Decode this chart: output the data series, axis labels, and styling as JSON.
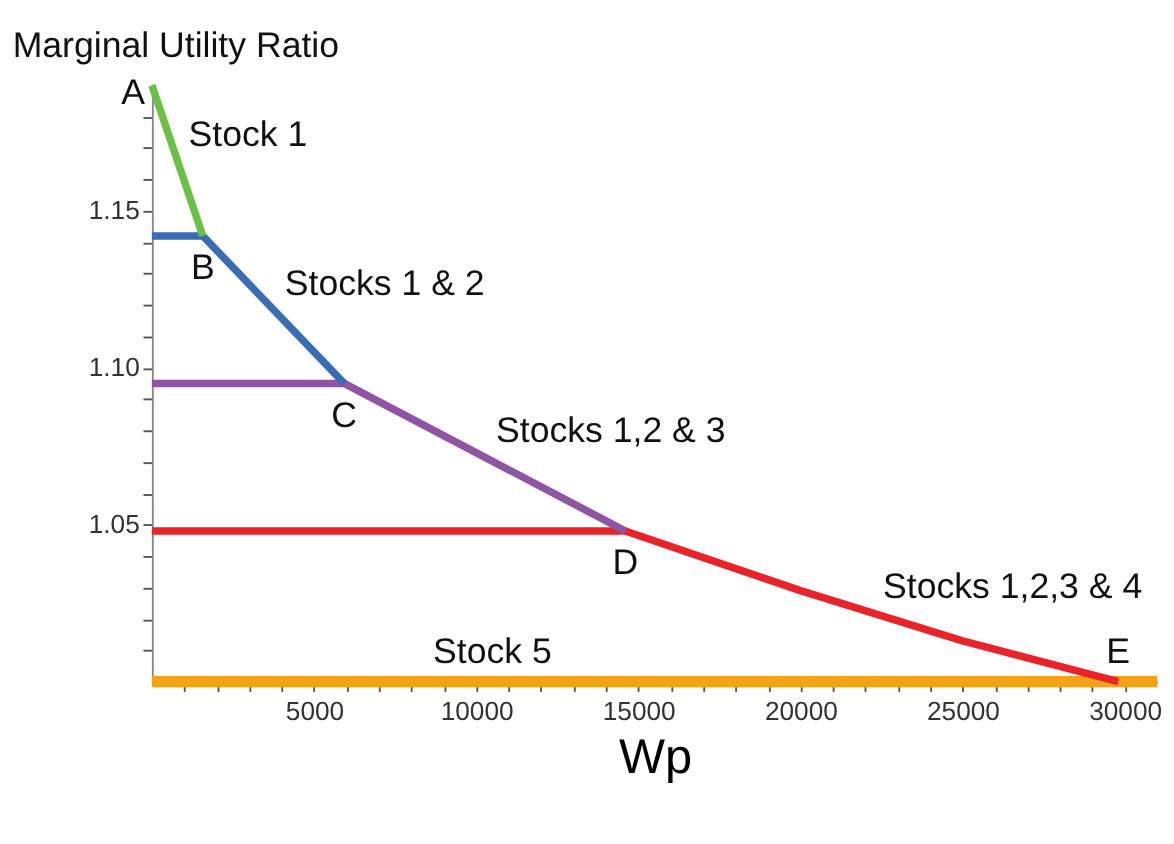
{
  "chart_data": {
    "type": "line",
    "xlabel": "Wp",
    "ylabel": "Marginal Utility Ratio",
    "xlim": [
      0,
      31000
    ],
    "ylim": [
      1.0,
      1.19
    ],
    "xticks": [
      {
        "value": 1000,
        "label": null
      },
      {
        "value": 2000,
        "label": null
      },
      {
        "value": 3000,
        "label": null
      },
      {
        "value": 4000,
        "label": null
      },
      5000,
      {
        "value": 6000,
        "label": null
      },
      {
        "value": 7000,
        "label": null
      },
      {
        "value": 8000,
        "label": null
      },
      {
        "value": 9000,
        "label": null
      },
      10000,
      {
        "value": 11000,
        "label": null
      },
      {
        "value": 12000,
        "label": null
      },
      {
        "value": 13000,
        "label": null
      },
      {
        "value": 14000,
        "label": null
      },
      15000,
      {
        "value": 16000,
        "label": null
      },
      {
        "value": 17000,
        "label": null
      },
      {
        "value": 18000,
        "label": null
      },
      {
        "value": 19000,
        "label": null
      },
      20000,
      {
        "value": 21000,
        "label": null
      },
      {
        "value": 22000,
        "label": null
      },
      {
        "value": 23000,
        "label": null
      },
      {
        "value": 24000,
        "label": null
      },
      25000,
      {
        "value": 26000,
        "label": null
      },
      {
        "value": 27000,
        "label": null
      },
      {
        "value": 28000,
        "label": null
      },
      {
        "value": 29000,
        "label": null
      },
      30000
    ],
    "yticks": [
      {
        "value": 1.01,
        "label": null
      },
      {
        "value": 1.02,
        "label": null
      },
      {
        "value": 1.03,
        "label": null
      },
      {
        "value": 1.04,
        "label": null
      },
      1.05,
      {
        "value": 1.06,
        "label": null
      },
      {
        "value": 1.07,
        "label": null
      },
      {
        "value": 1.08,
        "label": null
      },
      {
        "value": 1.09,
        "label": null
      },
      {
        "value": 1.1,
        "label": "1.10"
      },
      {
        "value": 1.11,
        "label": null
      },
      {
        "value": 1.12,
        "label": null
      },
      {
        "value": 1.13,
        "label": null
      },
      {
        "value": 1.14,
        "label": null
      },
      1.15,
      {
        "value": 1.16,
        "label": null
      },
      {
        "value": 1.17,
        "label": null
      },
      {
        "value": 1.18,
        "label": null
      }
    ],
    "grid": false,
    "marker": "none",
    "line_style": "solid",
    "series": [
      {
        "name": "Stock 5",
        "color": "#f7a11a",
        "x": [
          0,
          31000
        ],
        "values": [
          1.0,
          1.0
        ]
      },
      {
        "name": "Stocks 1,2,3 & 4",
        "color": "#e8232a",
        "x": [
          0,
          14600,
          20000,
          25000,
          29800
        ],
        "values": [
          1.048,
          1.048,
          1.029,
          1.013,
          1.0
        ]
      },
      {
        "name": "Stocks 1,2 & 3",
        "color": "#9055a2",
        "x": [
          0,
          5930,
          14600
        ],
        "values": [
          1.095,
          1.095,
          1.048
        ]
      },
      {
        "name": "Stocks 1 & 2",
        "color": "#3b6db5",
        "x": [
          0,
          1570,
          5930
        ],
        "values": [
          1.142,
          1.142,
          1.095
        ]
      },
      {
        "name": "Stock 1",
        "color": "#6cbf47",
        "x": [
          0,
          1570
        ],
        "values": [
          1.19,
          1.142
        ]
      }
    ],
    "annotations": [
      {
        "text": "A",
        "x": 0,
        "y": 1.19
      },
      {
        "text": "B",
        "x": 1570,
        "y": 1.142
      },
      {
        "text": "C",
        "x": 5930,
        "y": 1.095
      },
      {
        "text": "D",
        "x": 14600,
        "y": 1.048
      },
      {
        "text": "E",
        "x": 29800,
        "y": 1.0
      }
    ]
  }
}
